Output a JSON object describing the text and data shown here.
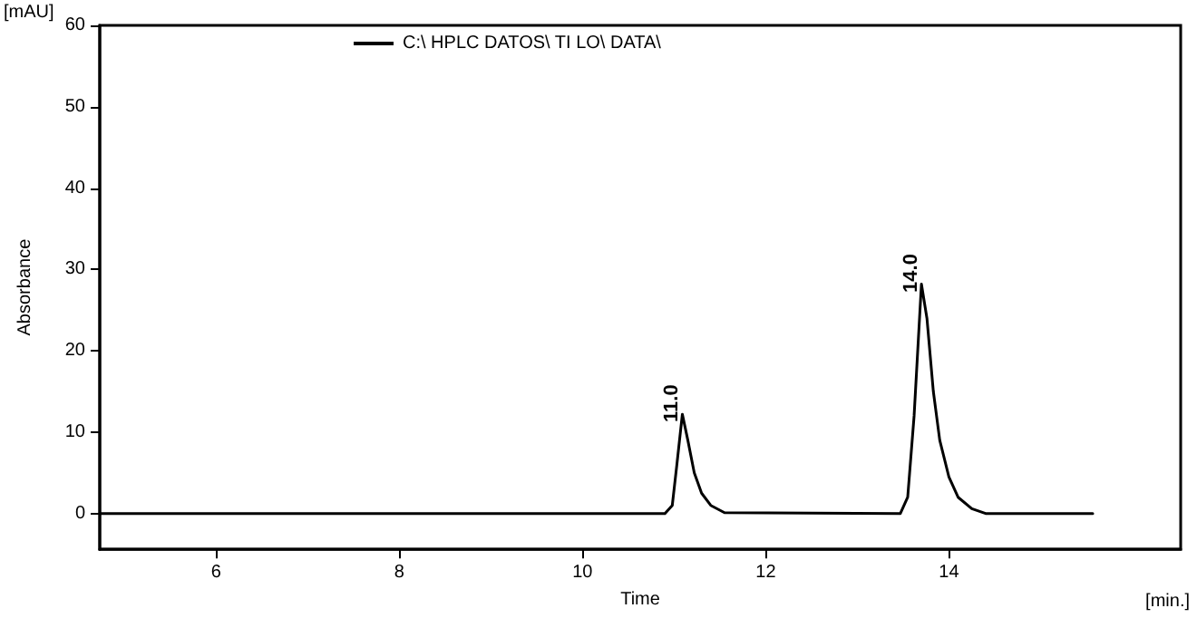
{
  "chart_data": {
    "type": "line",
    "xlabel": "Time",
    "ylabel": "Absorbance",
    "xlim": [
      4.73,
      16.53
    ],
    "xticks": [
      6,
      8,
      10,
      12,
      14
    ],
    "ylim": [
      -4.4,
      60
    ],
    "yticks": [
      0,
      10,
      20,
      30,
      40,
      50,
      60
    ],
    "grid": false,
    "legend": "top",
    "marker": "none",
    "line_style": "solid",
    "series": [
      {
        "name": "C:\\ HPLC DATOS\\ TI LO\\ DATA\\",
        "color": "#000000",
        "x": [
          4.73,
          10.9,
          10.98,
          11.03,
          11.09,
          11.15,
          11.22,
          11.3,
          11.4,
          11.55,
          13.47,
          13.55,
          13.62,
          13.7,
          13.76,
          13.83,
          13.9,
          14.0,
          14.1,
          14.25,
          14.4,
          15.57
        ],
        "values": [
          0,
          0,
          1,
          6,
          12.2,
          9,
          5,
          2.5,
          1,
          0.1,
          0,
          2,
          12,
          28.2,
          24,
          15,
          9,
          4.5,
          2,
          0.6,
          0,
          0
        ]
      }
    ],
    "annotations": [
      {
        "text": "11.0",
        "x": 11.09,
        "y": 12.2
      },
      {
        "text": "14.0",
        "x": 13.7,
        "y": 28.2
      },
      "[mAU]",
      "[min.]"
    ]
  }
}
